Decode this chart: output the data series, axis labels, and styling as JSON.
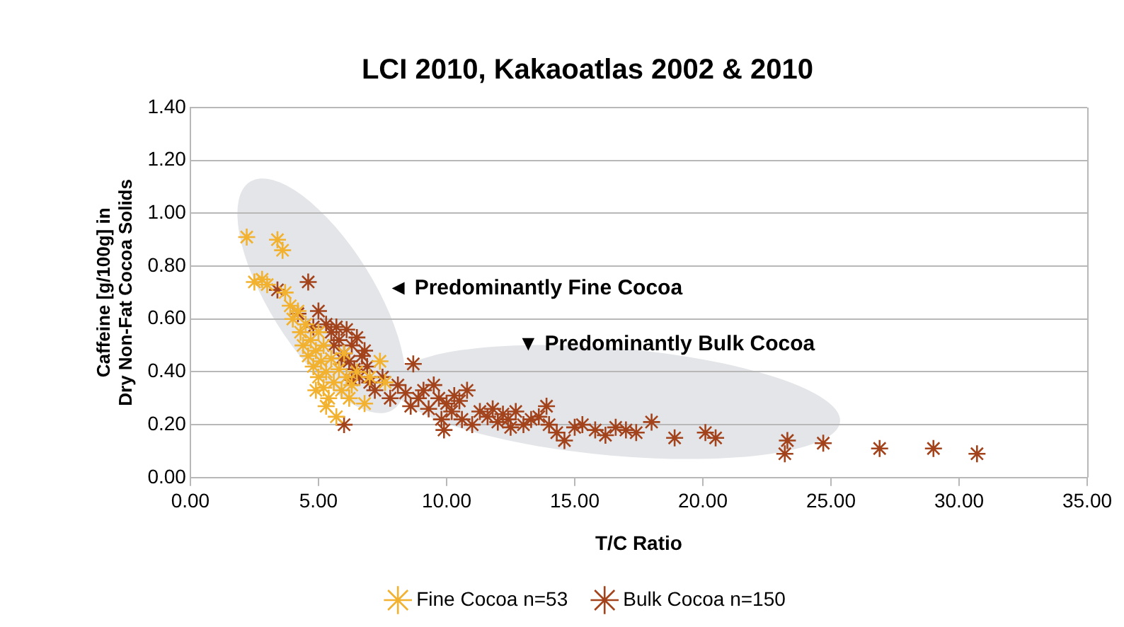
{
  "chart_data": {
    "type": "scatter",
    "title": "LCI 2010, Kakaoatlas 2002 & 2010",
    "xlabel": "T/C Ratio",
    "ylabel": "Caffeine [g/100g] in\nDry Non-Fat Cocoa Solids",
    "annotations": [
      "◄ Predominantly Fine Cocoa",
      "▼ Predominantly Bulk Cocoa"
    ],
    "xlim": [
      0,
      35
    ],
    "xticks": [
      {
        "value": 0,
        "label": "0.00"
      },
      {
        "value": 5,
        "label": "5.00"
      },
      {
        "value": 10,
        "label": "10.00"
      },
      {
        "value": 15,
        "label": "15.00"
      },
      {
        "value": 20,
        "label": "20.00"
      },
      {
        "value": 25,
        "label": "25.00"
      },
      {
        "value": 30,
        "label": "30.00"
      },
      {
        "value": 35,
        "label": "35.00"
      }
    ],
    "ylim": [
      0,
      1.4
    ],
    "yticks": [
      {
        "value": 0,
        "label": "0.00"
      },
      {
        "value": 0.2,
        "label": "0.20"
      },
      {
        "value": 0.4,
        "label": "0.40"
      },
      {
        "value": 0.6,
        "label": "0.60"
      },
      {
        "value": 0.8,
        "label": "0.80"
      },
      {
        "value": 1,
        "label": "1.00"
      },
      {
        "value": 1.2,
        "label": "1.20"
      },
      {
        "value": 1.4,
        "label": "1.40"
      }
    ],
    "grid": "y",
    "legend": "bottom",
    "marker": "cross",
    "series": [
      {
        "name": "Fine Cocoa n=53",
        "color": "#f2b12e",
        "x": [
          2.2,
          2.5,
          2.8,
          3.0,
          3.4,
          3.6,
          3.7,
          3.9,
          4.0,
          4.2,
          4.3,
          4.4,
          4.5,
          4.6,
          4.7,
          4.8,
          4.9,
          5.0,
          5.0,
          5.1,
          5.2,
          5.2,
          5.3,
          5.4,
          5.5,
          5.6,
          5.7,
          5.8,
          5.9,
          6.0,
          6.1,
          6.3,
          6.5,
          6.8,
          7.0,
          7.4,
          7.6,
          4.9,
          5.3,
          6.2
        ],
        "values": [
          0.91,
          0.74,
          0.75,
          0.73,
          0.9,
          0.86,
          0.7,
          0.65,
          0.6,
          0.63,
          0.55,
          0.5,
          0.58,
          0.46,
          0.52,
          0.42,
          0.48,
          0.38,
          0.55,
          0.44,
          0.34,
          0.5,
          0.4,
          0.3,
          0.45,
          0.36,
          0.23,
          0.41,
          0.33,
          0.47,
          0.38,
          0.35,
          0.4,
          0.28,
          0.38,
          0.44,
          0.36,
          0.33,
          0.27,
          0.3
        ]
      },
      {
        "name": "Bulk Cocoa n=150",
        "color": "#a3431c",
        "x": [
          3.4,
          4.6,
          4.2,
          4.8,
          5.0,
          5.3,
          5.5,
          5.6,
          5.8,
          6.0,
          6.1,
          6.2,
          6.3,
          6.4,
          6.5,
          6.6,
          6.7,
          6.8,
          6.9,
          7.0,
          7.2,
          5.9,
          6.0,
          5.7,
          6.3,
          7.5,
          7.8,
          8.1,
          8.4,
          8.7,
          8.6,
          8.9,
          9.1,
          9.3,
          9.5,
          9.7,
          9.8,
          9.9,
          10.0,
          10.2,
          10.3,
          10.5,
          10.6,
          10.8,
          11.0,
          11.3,
          11.6,
          11.8,
          12.0,
          12.2,
          12.4,
          12.5,
          12.7,
          13.0,
          13.3,
          13.6,
          13.9,
          14.0,
          14.3,
          14.6,
          15.0,
          15.3,
          15.8,
          16.2,
          16.6,
          17.0,
          17.4,
          18.0,
          18.9,
          20.1,
          20.5,
          23.2,
          23.3,
          24.7,
          26.9,
          29.0,
          30.7
        ],
        "values": [
          0.71,
          0.74,
          0.62,
          0.57,
          0.63,
          0.58,
          0.55,
          0.5,
          0.52,
          0.47,
          0.56,
          0.44,
          0.5,
          0.41,
          0.53,
          0.38,
          0.46,
          0.48,
          0.42,
          0.36,
          0.33,
          0.45,
          0.2,
          0.57,
          0.37,
          0.38,
          0.3,
          0.35,
          0.32,
          0.43,
          0.27,
          0.3,
          0.33,
          0.26,
          0.35,
          0.3,
          0.22,
          0.18,
          0.28,
          0.25,
          0.31,
          0.29,
          0.22,
          0.33,
          0.2,
          0.25,
          0.23,
          0.26,
          0.21,
          0.24,
          0.22,
          0.19,
          0.25,
          0.2,
          0.22,
          0.23,
          0.27,
          0.2,
          0.17,
          0.14,
          0.19,
          0.2,
          0.18,
          0.16,
          0.19,
          0.18,
          0.17,
          0.21,
          0.15,
          0.17,
          0.15,
          0.09,
          0.14,
          0.13,
          0.11,
          0.11,
          0.09
        ]
      }
    ]
  }
}
